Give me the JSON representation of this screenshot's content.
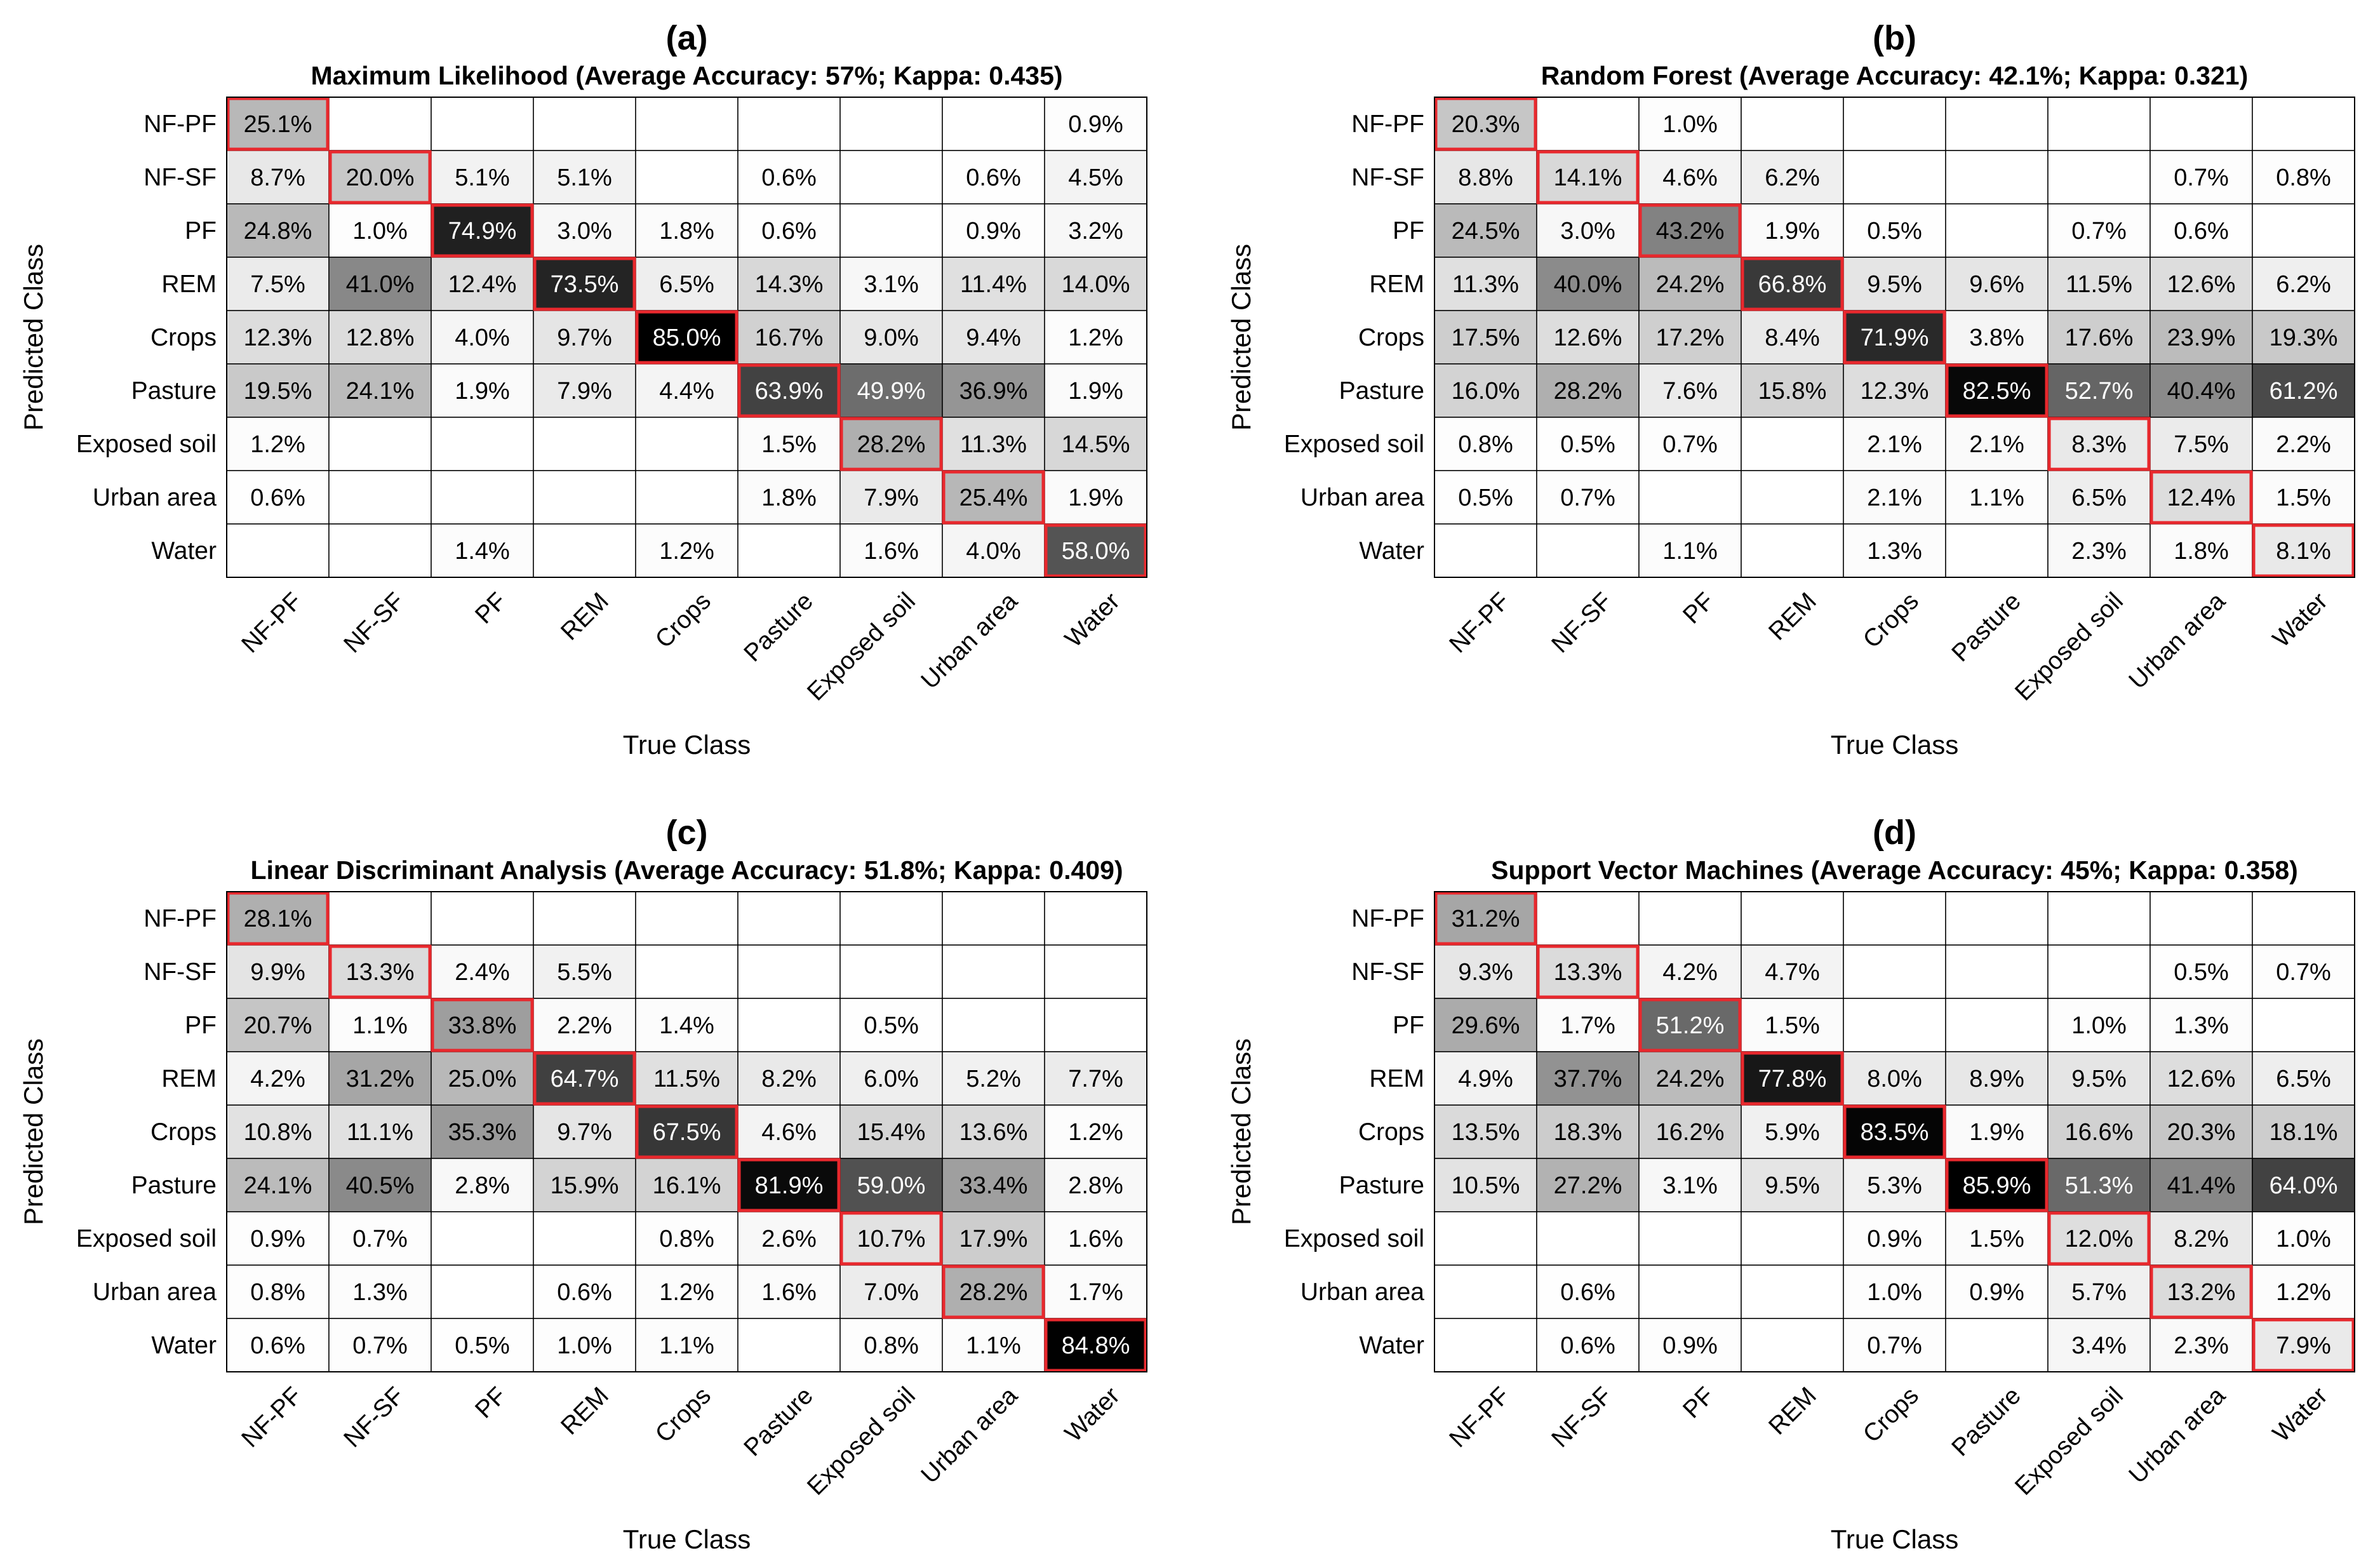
{
  "classes": [
    "NF-PF",
    "NF-SF",
    "PF",
    "REM",
    "Crops",
    "Pasture",
    "Exposed soil",
    "Urban area",
    "Water"
  ],
  "chart_data": [
    {
      "type": "heatmap",
      "panel_label": "(a)",
      "title": "Maximum Likelihood (Average Accuracy: 57%; Kappa: 0.435)",
      "xlabel": "True Class",
      "ylabel": "Predicted Class",
      "value_unit": "%",
      "rows": [
        [
          25.1,
          null,
          null,
          null,
          null,
          null,
          null,
          null,
          0.9
        ],
        [
          8.7,
          20.0,
          5.1,
          5.1,
          null,
          0.6,
          null,
          0.6,
          4.5
        ],
        [
          24.8,
          1.0,
          74.9,
          3.0,
          1.8,
          0.6,
          null,
          0.9,
          3.2
        ],
        [
          7.5,
          41.0,
          12.4,
          73.5,
          6.5,
          14.3,
          3.1,
          11.4,
          14.0
        ],
        [
          12.3,
          12.8,
          4.0,
          9.7,
          85.0,
          16.7,
          9.0,
          9.4,
          1.2
        ],
        [
          19.5,
          24.1,
          1.9,
          7.9,
          4.4,
          63.9,
          49.9,
          36.9,
          1.9
        ],
        [
          1.2,
          null,
          null,
          null,
          null,
          1.5,
          28.2,
          11.3,
          14.5
        ],
        [
          0.6,
          null,
          null,
          null,
          null,
          1.8,
          7.9,
          25.4,
          1.9
        ],
        [
          null,
          null,
          1.4,
          null,
          1.2,
          null,
          1.6,
          4.0,
          58.0
        ]
      ]
    },
    {
      "type": "heatmap",
      "panel_label": "(b)",
      "title": "Random Forest (Average Accuracy: 42.1%; Kappa: 0.321)",
      "xlabel": "True Class",
      "ylabel": "Predicted Class",
      "value_unit": "%",
      "rows": [
        [
          20.3,
          null,
          1.0,
          null,
          null,
          null,
          null,
          null,
          null
        ],
        [
          8.8,
          14.1,
          4.6,
          6.2,
          null,
          null,
          null,
          0.7,
          0.8
        ],
        [
          24.5,
          3.0,
          43.2,
          1.9,
          0.5,
          null,
          0.7,
          0.6,
          null
        ],
        [
          11.3,
          40.0,
          24.2,
          66.8,
          9.5,
          9.6,
          11.5,
          12.6,
          6.2
        ],
        [
          17.5,
          12.6,
          17.2,
          8.4,
          71.9,
          3.8,
          17.6,
          23.9,
          19.3
        ],
        [
          16.0,
          28.2,
          7.6,
          15.8,
          12.3,
          82.5,
          52.7,
          40.4,
          61.2
        ],
        [
          0.8,
          0.5,
          0.7,
          null,
          2.1,
          2.1,
          8.3,
          7.5,
          2.2
        ],
        [
          0.5,
          0.7,
          null,
          null,
          2.1,
          1.1,
          6.5,
          12.4,
          1.5
        ],
        [
          null,
          null,
          1.1,
          null,
          1.3,
          null,
          2.3,
          1.8,
          8.1
        ]
      ]
    },
    {
      "type": "heatmap",
      "panel_label": "(c)",
      "title": "Linear Discriminant Analysis (Average Accuracy: 51.8%; Kappa: 0.409)",
      "xlabel": "True Class",
      "ylabel": "Predicted Class",
      "value_unit": "%",
      "rows": [
        [
          28.1,
          null,
          null,
          null,
          null,
          null,
          null,
          null,
          null
        ],
        [
          9.9,
          13.3,
          2.4,
          5.5,
          null,
          null,
          null,
          null,
          null
        ],
        [
          20.7,
          1.1,
          33.8,
          2.2,
          1.4,
          null,
          0.5,
          null,
          null
        ],
        [
          4.2,
          31.2,
          25.0,
          64.7,
          11.5,
          8.2,
          6.0,
          5.2,
          7.7
        ],
        [
          10.8,
          11.1,
          35.3,
          9.7,
          67.5,
          4.6,
          15.4,
          13.6,
          1.2
        ],
        [
          24.1,
          40.5,
          2.8,
          15.9,
          16.1,
          81.9,
          59.0,
          33.4,
          2.8
        ],
        [
          0.9,
          0.7,
          null,
          null,
          0.8,
          2.6,
          10.7,
          17.9,
          1.6
        ],
        [
          0.8,
          1.3,
          null,
          0.6,
          1.2,
          1.6,
          7.0,
          28.2,
          1.7
        ],
        [
          0.6,
          0.7,
          0.5,
          1.0,
          1.1,
          null,
          0.8,
          1.1,
          84.8
        ]
      ]
    },
    {
      "type": "heatmap",
      "panel_label": "(d)",
      "title": "Support Vector Machines (Average Accuracy: 45%; Kappa: 0.358)",
      "xlabel": "True Class",
      "ylabel": "Predicted Class",
      "value_unit": "%",
      "rows": [
        [
          31.2,
          null,
          null,
          null,
          null,
          null,
          null,
          null,
          null
        ],
        [
          9.3,
          13.3,
          4.2,
          4.7,
          null,
          null,
          null,
          0.5,
          0.7
        ],
        [
          29.6,
          1.7,
          51.2,
          1.5,
          null,
          null,
          1.0,
          1.3,
          null
        ],
        [
          4.9,
          37.7,
          24.2,
          77.8,
          8.0,
          8.9,
          9.5,
          12.6,
          6.5
        ],
        [
          13.5,
          18.3,
          16.2,
          5.9,
          83.5,
          1.9,
          16.6,
          20.3,
          18.1
        ],
        [
          10.5,
          27.2,
          3.1,
          9.5,
          5.3,
          85.9,
          51.3,
          41.4,
          64.0
        ],
        [
          null,
          null,
          null,
          null,
          0.9,
          1.5,
          12.0,
          8.2,
          1.0
        ],
        [
          null,
          0.6,
          null,
          null,
          1.0,
          0.9,
          5.7,
          13.2,
          1.2
        ],
        [
          null,
          0.6,
          0.9,
          null,
          0.7,
          null,
          3.4,
          2.3,
          7.9
        ]
      ]
    }
  ],
  "colors": {
    "diagonal_border": "#e8282d",
    "grid_line": "#000000",
    "text_dark": "#000000",
    "text_light": "#ffffff",
    "background": "#ffffff"
  }
}
